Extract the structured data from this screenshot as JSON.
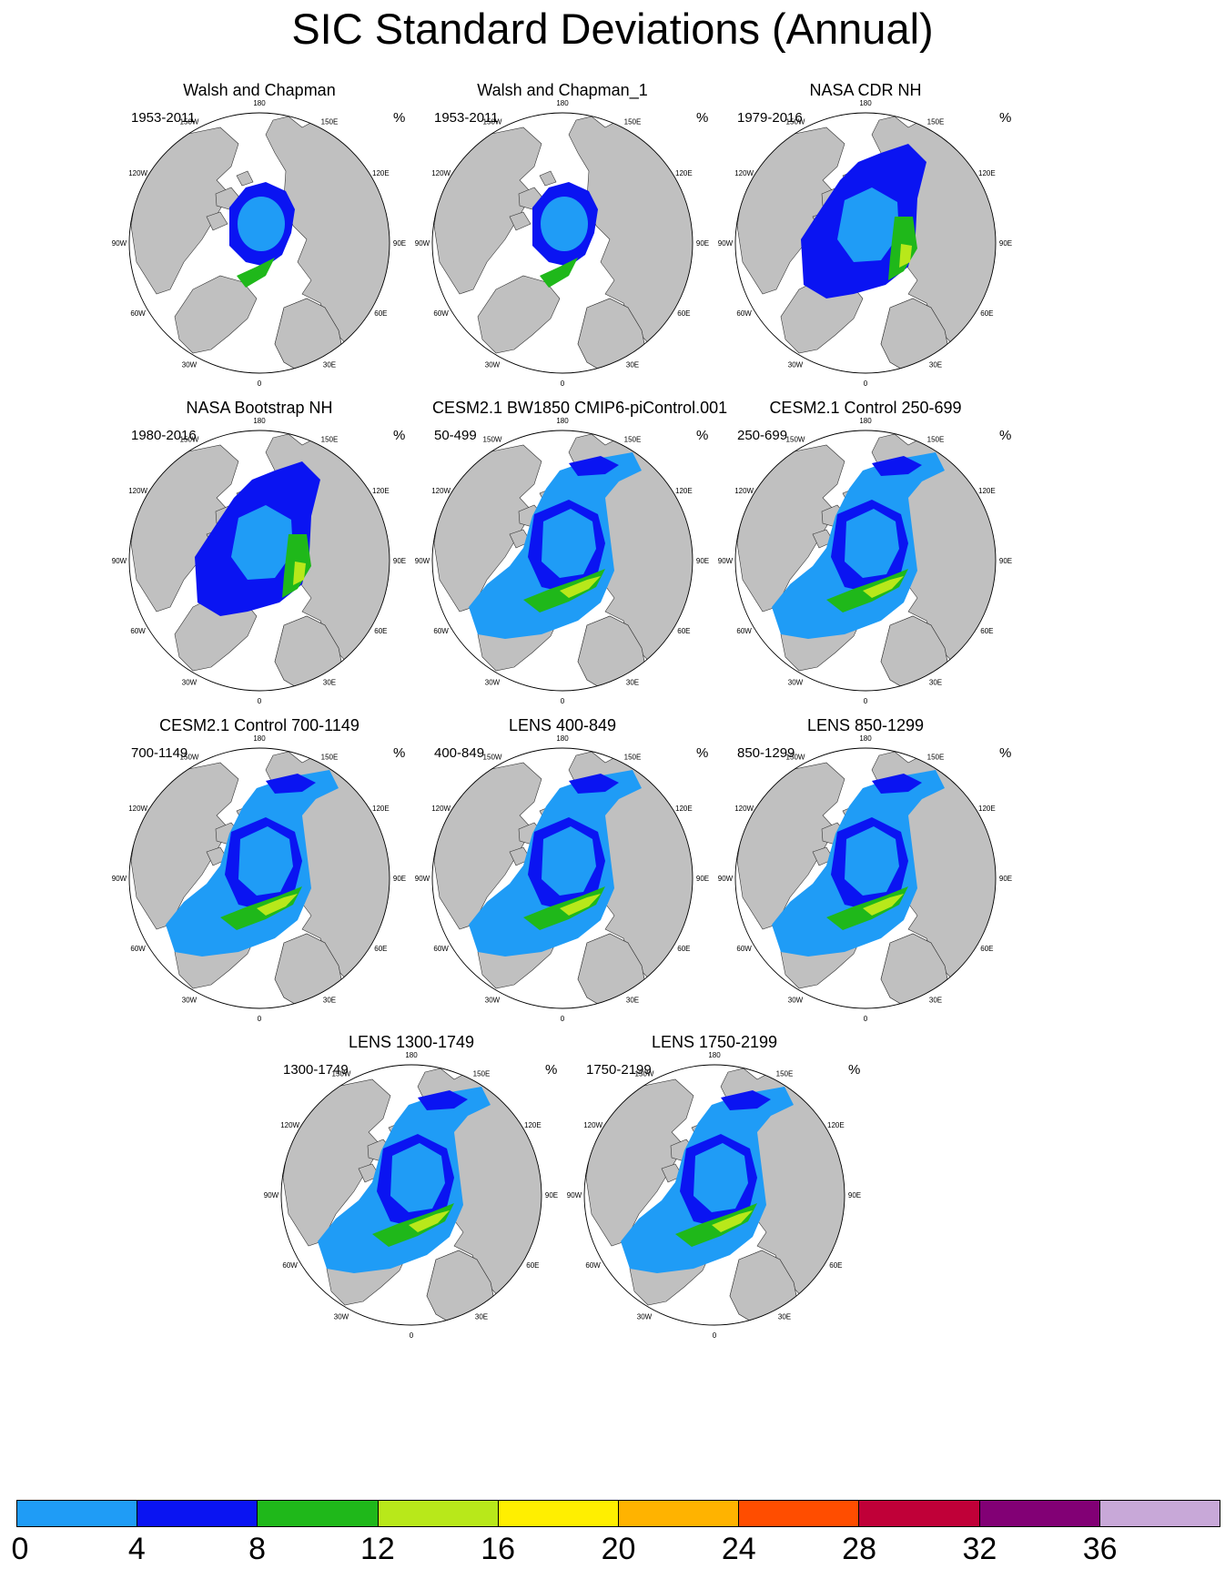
{
  "title": "SIC Standard Deviations (Annual)",
  "units": "%",
  "longitude_labels": [
    "180",
    "150E",
    "120E",
    "90E",
    "60E",
    "30E",
    "0",
    "30W",
    "60W",
    "90W",
    "120W",
    "150W"
  ],
  "panels": [
    {
      "title": "Walsh and Chapman",
      "period": "1953-2011",
      "style": "obs-wc"
    },
    {
      "title": "Walsh and Chapman_1",
      "period": "1953-2011",
      "style": "obs-wc"
    },
    {
      "title": "NASA CDR NH",
      "period": "1979-2016",
      "style": "obs-sat"
    },
    {
      "title": "NASA Bootstrap NH",
      "period": "1980-2016",
      "style": "obs-sat"
    },
    {
      "title": "CESM2.1 BW1850 CMIP6-piControl.001",
      "period": "50-499",
      "style": "model"
    },
    {
      "title": "CESM2.1 Control 250-699",
      "period": "250-699",
      "style": "model"
    },
    {
      "title": "CESM2.1 Control 700-1149",
      "period": "700-1149",
      "style": "model"
    },
    {
      "title": "LENS 400-849",
      "period": "400-849",
      "style": "model"
    },
    {
      "title": "LENS 850-1299",
      "period": "850-1299",
      "style": "model"
    },
    {
      "title": "LENS 1300-1749",
      "period": "1300-1749",
      "style": "model"
    },
    {
      "title": "LENS 1750-2199",
      "period": "1750-2199",
      "style": "model"
    }
  ],
  "colorbar": {
    "labels": [
      "0",
      "4",
      "8",
      "12",
      "16",
      "20",
      "24",
      "28",
      "32",
      "36"
    ],
    "colors": [
      "#1f9cf6",
      "#0a14f2",
      "#1fb81a",
      "#b8e81a",
      "#ffef00",
      "#ffb300",
      "#ff4d00",
      "#c00038",
      "#820075",
      "#c8a8d8"
    ]
  },
  "colors": {
    "land": "#c0c0c0",
    "ocean": "#ffffff",
    "outline": "#000000"
  }
}
